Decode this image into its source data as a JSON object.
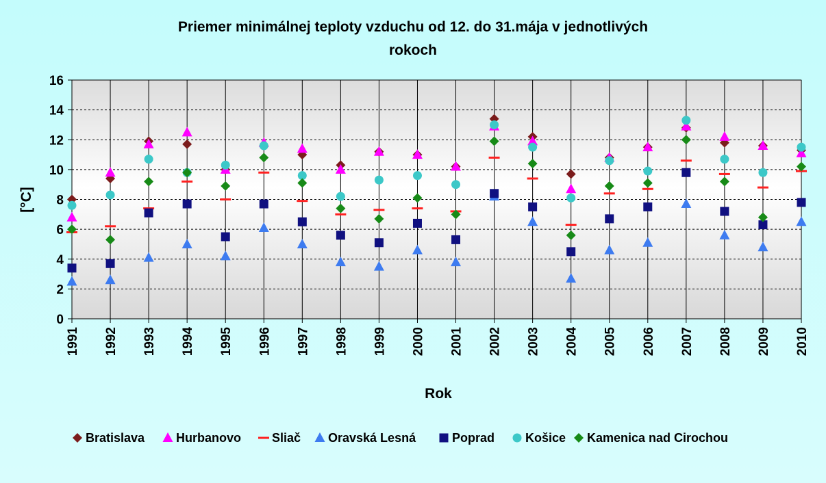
{
  "chart_data": {
    "type": "scatter",
    "title_lines": [
      "Priemer minimálnej teploty vzduchu od 12. do 31.mája v jednotlivých",
      "rokoch"
    ],
    "xlabel": "Rok",
    "ylabel": "[°C]",
    "ylim": [
      0,
      16
    ],
    "y_ticks": [
      "0",
      "2",
      "4",
      "6",
      "8",
      "10",
      "12",
      "14",
      "16"
    ],
    "categories": [
      "1991",
      "1992",
      "1993",
      "1994",
      "1995",
      "1996",
      "1997",
      "1998",
      "1999",
      "2000",
      "2001",
      "2002",
      "2003",
      "2004",
      "2005",
      "2006",
      "2007",
      "2008",
      "2009",
      "2010"
    ],
    "grid": "horizontal dashed",
    "legend_position": "bottom",
    "series": [
      {
        "name": "Bratislava",
        "marker": "diamond",
        "color": "#7b1c1c",
        "values": [
          8.0,
          9.4,
          11.9,
          11.7,
          10.0,
          11.6,
          11.0,
          10.3,
          11.2,
          11.0,
          10.2,
          13.4,
          12.2,
          9.7,
          10.8,
          11.5,
          12.8,
          11.8,
          11.6,
          11.3
        ]
      },
      {
        "name": "Hurbanovo",
        "marker": "triangle",
        "color": "#ff00ff",
        "values": [
          6.8,
          9.8,
          11.7,
          12.5,
          10.0,
          11.8,
          11.4,
          10.0,
          11.2,
          11.0,
          10.2,
          12.9,
          11.9,
          8.7,
          10.8,
          11.5,
          12.9,
          12.2,
          11.6,
          11.1
        ]
      },
      {
        "name": "Sliač",
        "marker": "dash",
        "color": "#ff2020",
        "values": [
          5.8,
          6.2,
          7.4,
          9.2,
          8.0,
          9.8,
          7.9,
          7.0,
          7.3,
          7.4,
          7.2,
          10.8,
          9.4,
          6.3,
          8.4,
          8.7,
          10.6,
          9.7,
          8.8,
          9.9
        ]
      },
      {
        "name": "Oravská Lesná",
        "marker": "triangle",
        "color": "#3d7bf0",
        "values": [
          2.5,
          2.6,
          4.1,
          5.0,
          4.2,
          6.1,
          5.0,
          3.8,
          3.5,
          4.6,
          3.8,
          8.2,
          6.5,
          2.7,
          4.6,
          5.1,
          7.7,
          5.6,
          4.8,
          6.5
        ]
      },
      {
        "name": "Poprad",
        "marker": "square",
        "color": "#101080",
        "values": [
          3.4,
          3.7,
          7.1,
          7.7,
          5.5,
          7.7,
          6.5,
          5.6,
          5.1,
          6.4,
          5.3,
          8.4,
          7.5,
          4.5,
          6.7,
          7.5,
          9.8,
          7.2,
          6.3,
          7.8
        ]
      },
      {
        "name": "Košice",
        "marker": "circle",
        "color": "#3cc8c8",
        "values": [
          7.6,
          8.3,
          10.7,
          9.8,
          10.3,
          11.6,
          9.6,
          8.2,
          9.3,
          9.6,
          9.0,
          13.0,
          11.5,
          8.1,
          10.6,
          9.9,
          13.3,
          10.7,
          9.8,
          11.5
        ]
      },
      {
        "name": "Kamenica nad Cirochou",
        "marker": "diamond",
        "color": "#178a17",
        "values": [
          6.0,
          5.3,
          9.2,
          9.8,
          8.9,
          10.8,
          9.1,
          7.4,
          6.7,
          8.1,
          7.0,
          11.9,
          10.4,
          5.6,
          8.9,
          9.1,
          12.0,
          9.2,
          6.8,
          10.2
        ]
      }
    ]
  }
}
